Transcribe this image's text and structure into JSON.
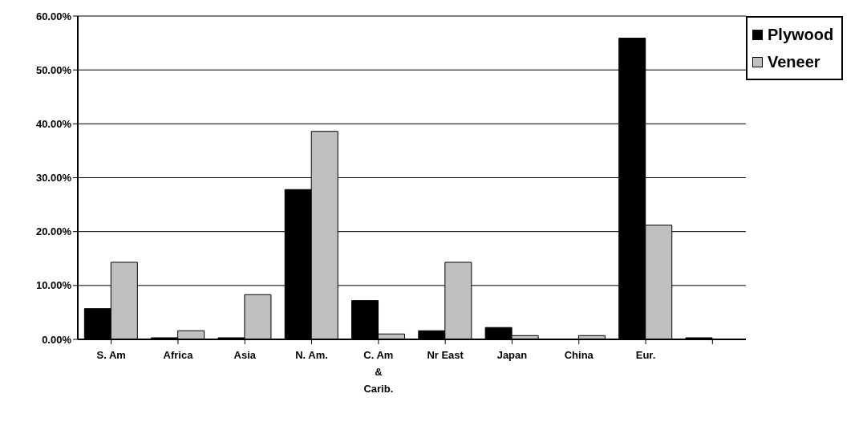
{
  "chart_data": {
    "type": "bar",
    "categories": [
      "S. Am",
      "Africa",
      "Asia",
      "N. Am.",
      "C. Am\n&\nCarib.",
      "Nr East",
      "Japan",
      "China",
      "Eur.",
      null
    ],
    "series": [
      {
        "name": "Plywood",
        "color": "#000000",
        "values": [
          5.7,
          0.3,
          0.3,
          27.8,
          7.2,
          1.6,
          2.2,
          0,
          55.9,
          0.3
        ]
      },
      {
        "name": "Veneer",
        "color": "#c0c0c0",
        "values": [
          14.3,
          1.6,
          8.3,
          38.6,
          1.0,
          14.3,
          0.7,
          0.7,
          21.2,
          0
        ]
      }
    ],
    "ylim": [
      0,
      60
    ],
    "yticks": [
      {
        "value": 0,
        "label": "0.00%"
      },
      {
        "value": 10,
        "label": "10.00%"
      },
      {
        "value": 20,
        "label": "20.00%"
      },
      {
        "value": 30,
        "label": "30.00%"
      },
      {
        "value": 40,
        "label": "40.00%"
      },
      {
        "value": 50,
        "label": "50.00%"
      },
      {
        "value": 60,
        "label": "60.00%"
      }
    ],
    "grid": "y",
    "legend": "top right"
  }
}
